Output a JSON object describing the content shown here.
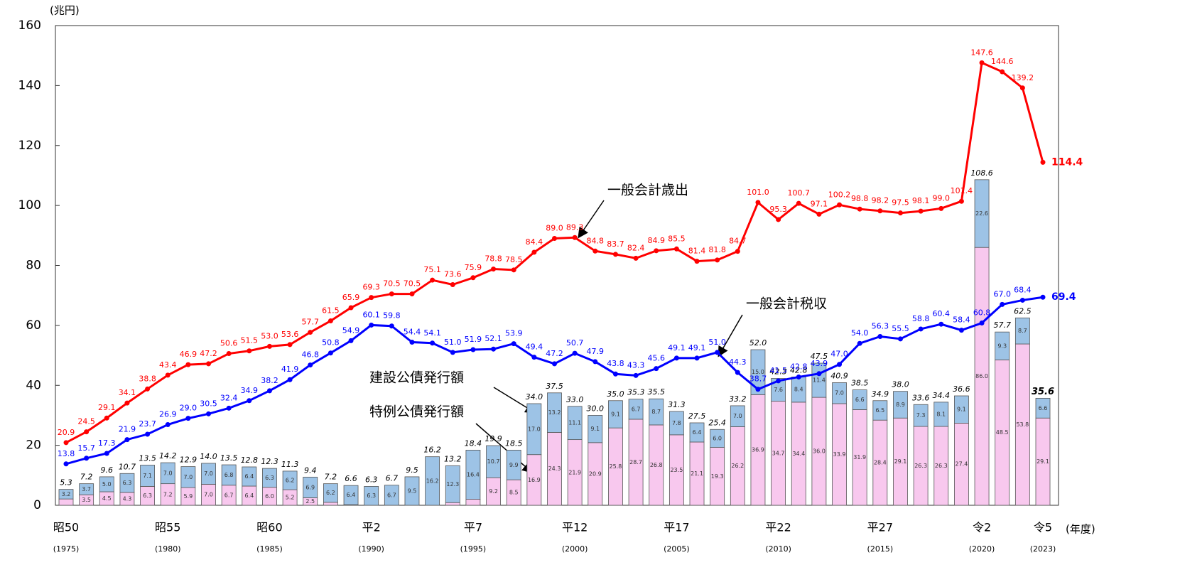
{
  "chart_data": {
    "type": "combo",
    "y_unit": "(兆円)",
    "x_unit": "(年度)",
    "categories": [
      "昭50",
      null,
      null,
      null,
      null,
      "昭55",
      null,
      null,
      null,
      null,
      "昭60",
      null,
      null,
      null,
      null,
      "平2",
      null,
      null,
      null,
      null,
      "平7",
      null,
      null,
      null,
      null,
      "平12",
      null,
      null,
      null,
      null,
      "平17",
      null,
      null,
      null,
      null,
      "平22",
      null,
      null,
      null,
      null,
      "平27",
      null,
      null,
      null,
      null,
      "令2",
      null,
      null,
      "令5"
    ],
    "category_years": [
      "(1975)",
      null,
      null,
      null,
      null,
      "(1980)",
      null,
      null,
      null,
      null,
      "(1985)",
      null,
      null,
      null,
      null,
      "(1990)",
      null,
      null,
      null,
      null,
      "(1995)",
      null,
      null,
      null,
      null,
      "(2000)",
      null,
      null,
      null,
      null,
      "(2005)",
      null,
      null,
      null,
      null,
      "(2010)",
      null,
      null,
      null,
      null,
      "(2015)",
      null,
      null,
      null,
      null,
      "(2020)",
      null,
      null,
      "(2023)"
    ],
    "ylim": [
      0,
      160
    ],
    "yticks": [
      0,
      20,
      40,
      60,
      80,
      100,
      120,
      140,
      160
    ],
    "grid": false,
    "series": [
      {
        "name": "一般会計歳出",
        "type": "line",
        "color": "#ff0000",
        "values": [
          20.9,
          24.5,
          29.1,
          34.1,
          38.8,
          43.4,
          46.9,
          47.2,
          50.6,
          51.5,
          53.0,
          53.6,
          57.7,
          61.5,
          65.9,
          69.3,
          70.5,
          70.5,
          75.1,
          73.6,
          75.9,
          78.8,
          78.5,
          84.4,
          89.0,
          89.3,
          84.8,
          83.7,
          82.4,
          84.9,
          85.5,
          81.4,
          81.8,
          84.7,
          101.0,
          95.3,
          100.7,
          97.1,
          100.2,
          98.8,
          98.2,
          97.5,
          98.1,
          99.0,
          101.4,
          147.6,
          144.6,
          139.2,
          114.4
        ],
        "value_labels": [
          "20.9",
          "24.5",
          "29.1",
          "34.1",
          "38.8",
          "43.4",
          "46.9",
          "47.2",
          "50.6",
          "51.5",
          "53.0",
          "53.6",
          "57.7",
          "61.5",
          "65.9",
          "69.3",
          "70.5",
          "70.5",
          "75.1",
          "73.6",
          "75.9",
          "78.8",
          "78.5",
          "84.4",
          "89.0",
          "89.3",
          "84.8",
          "83.7",
          "82.4",
          "84.9",
          "85.5",
          "81.4",
          "81.8",
          "84.7",
          "101.0",
          "95.3",
          "100.7",
          "97.1",
          "100.2",
          "98.8",
          "98.2",
          "97.5",
          "98.1",
          "99.0",
          "101.4",
          "147.6",
          "144.6",
          "139.2",
          "114.4"
        ]
      },
      {
        "name": "一般会計税収",
        "type": "line",
        "color": "#0000ff",
        "values": [
          13.8,
          15.7,
          17.3,
          21.9,
          23.7,
          26.9,
          29.0,
          30.5,
          32.4,
          34.9,
          38.2,
          41.9,
          46.8,
          50.8,
          54.9,
          60.1,
          59.8,
          54.4,
          54.1,
          51.0,
          51.9,
          52.1,
          53.9,
          49.4,
          47.2,
          50.7,
          47.9,
          43.8,
          43.3,
          45.6,
          49.1,
          49.1,
          51.0,
          44.3,
          38.7,
          41.5,
          42.8,
          43.9,
          47.0,
          54.0,
          56.3,
          55.5,
          58.8,
          60.4,
          58.4,
          60.8,
          67.0,
          68.4,
          69.4
        ],
        "value_labels": [
          "13.8",
          "15.7",
          "17.3",
          "21.9",
          "23.7",
          "26.9",
          "29.0",
          "30.5",
          "32.4",
          "34.9",
          "38.2",
          "41.9",
          "46.8",
          "50.8",
          "54.9",
          "60.1",
          "59.8",
          "54.4",
          "54.1",
          "51.0",
          "51.9",
          "52.1",
          "53.9",
          "49.4",
          "47.2",
          "50.7",
          "47.9",
          "43.8",
          "43.3",
          "45.6",
          "49.1",
          "49.1",
          "51.0",
          "44.3",
          "38.7",
          "41.5",
          "42.8",
          "43.9",
          "47.0",
          "54.0",
          "56.3",
          "55.5",
          "58.8",
          "60.4",
          "58.4",
          "60.8",
          "67.0",
          "68.4",
          "69.4"
        ]
      },
      {
        "name": "特例公債発行額",
        "type": "bar",
        "color": "#f8c8ee",
        "values": [
          2.1,
          3.5,
          4.5,
          4.3,
          6.3,
          7.2,
          5.9,
          7.0,
          6.7,
          6.4,
          6.0,
          5.2,
          2.5,
          1.0,
          0.2,
          null,
          null,
          null,
          null,
          0.9,
          2.0,
          9.2,
          8.5,
          16.9,
          24.3,
          21.9,
          20.9,
          25.8,
          28.7,
          26.8,
          23.5,
          21.1,
          19.3,
          26.2,
          36.9,
          34.7,
          34.4,
          36.0,
          33.9,
          31.9,
          28.4,
          29.1,
          26.3,
          26.3,
          27.4,
          86.0,
          48.5,
          53.8,
          29.1
        ],
        "value_labels": [
          "2.1",
          "3.5",
          "4.5",
          "4.3",
          "6.3",
          "7.2",
          "5.9",
          "7.0",
          "6.7",
          "6.4",
          "6.0",
          "5.2",
          "2.5",
          "1.0",
          "0.2",
          null,
          null,
          null,
          null,
          "0.9",
          "2.0",
          "9.2",
          "8.5",
          "16.9",
          "24.3",
          "21.9",
          "20.9",
          "25.8",
          "28.7",
          "26.8",
          "23.5",
          "21.1",
          "19.3",
          "26.2",
          "36.9",
          "34.7",
          "34.4",
          "36.0",
          "33.9",
          "31.9",
          "28.4",
          "29.1",
          "26.3",
          "26.3",
          "27.4",
          "86.0",
          "48.5",
          "53.8",
          "29.1"
        ]
      },
      {
        "name": "建設公債発行額",
        "type": "bar",
        "color": "#9dc3e6",
        "values": [
          3.2,
          3.7,
          5.0,
          6.3,
          7.1,
          7.0,
          7.0,
          7.0,
          6.8,
          6.4,
          6.3,
          6.2,
          6.9,
          6.2,
          6.4,
          6.3,
          6.7,
          9.5,
          16.2,
          12.3,
          16.4,
          10.7,
          9.9,
          17.0,
          13.2,
          11.1,
          9.1,
          9.1,
          6.7,
          8.7,
          7.8,
          6.4,
          6.0,
          7.0,
          15.0,
          7.6,
          8.4,
          11.4,
          7.0,
          6.6,
          6.5,
          8.9,
          7.3,
          8.1,
          9.1,
          22.6,
          9.3,
          8.7,
          6.6
        ],
        "value_labels": [
          "3.2",
          "3.7",
          "5.0",
          "6.3",
          "7.1",
          "7.0",
          "7.0",
          "7.0",
          "6.8",
          "6.4",
          "6.3",
          "6.2",
          "6.9",
          "6.2",
          "6.4",
          "6.3",
          "6.7",
          "9.5",
          "16.2",
          "12.3",
          "16.4",
          "10.7",
          "9.9",
          "17.0",
          "13.2",
          "11.1",
          "9.1",
          "9.1",
          "6.7",
          "8.7",
          "7.8",
          "6.4",
          "6.0",
          "7.0",
          "15.0",
          "7.6",
          "8.4",
          "11.4",
          "7.0",
          "6.6",
          "6.5",
          "8.9",
          "7.3",
          "8.1",
          "9.1",
          "22.6",
          "9.3",
          "8.7",
          "6.6"
        ]
      }
    ],
    "bond_totals": {
      "values": [
        5.3,
        7.2,
        9.6,
        10.7,
        13.5,
        14.2,
        12.9,
        14.0,
        13.5,
        12.8,
        12.3,
        11.3,
        9.4,
        7.2,
        6.6,
        6.3,
        6.7,
        9.5,
        16.2,
        13.2,
        18.4,
        19.9,
        18.5,
        34.0,
        37.5,
        33.0,
        30.0,
        35.0,
        35.3,
        35.5,
        31.3,
        27.5,
        25.4,
        33.2,
        52.0,
        42.3,
        42.8,
        47.5,
        40.9,
        38.5,
        34.9,
        38.0,
        33.6,
        34.4,
        36.6,
        108.6,
        57.7,
        62.5,
        35.6
      ],
      "value_labels": [
        "5.3",
        "7.2",
        "9.6",
        "10.7",
        "13.5",
        "14.2",
        "12.9",
        "14.0",
        "13.5",
        "12.8",
        "12.3",
        "11.3",
        "9.4",
        "7.2",
        "6.6",
        "6.3",
        "6.7",
        "9.5",
        "16.2",
        "13.2",
        "18.4",
        "19.9",
        "18.5",
        "34.0",
        "37.5",
        "33.0",
        "30.0",
        "35.0",
        "35.3",
        "35.5",
        "31.3",
        "27.5",
        "25.4",
        "33.2",
        "52.0",
        "42.3",
        "42.8",
        "47.5",
        "40.9",
        "38.5",
        "34.9",
        "38.0",
        "33.6",
        "34.4",
        "36.6",
        "108.6",
        "57.7",
        "62.5",
        "35.6"
      ]
    }
  }
}
